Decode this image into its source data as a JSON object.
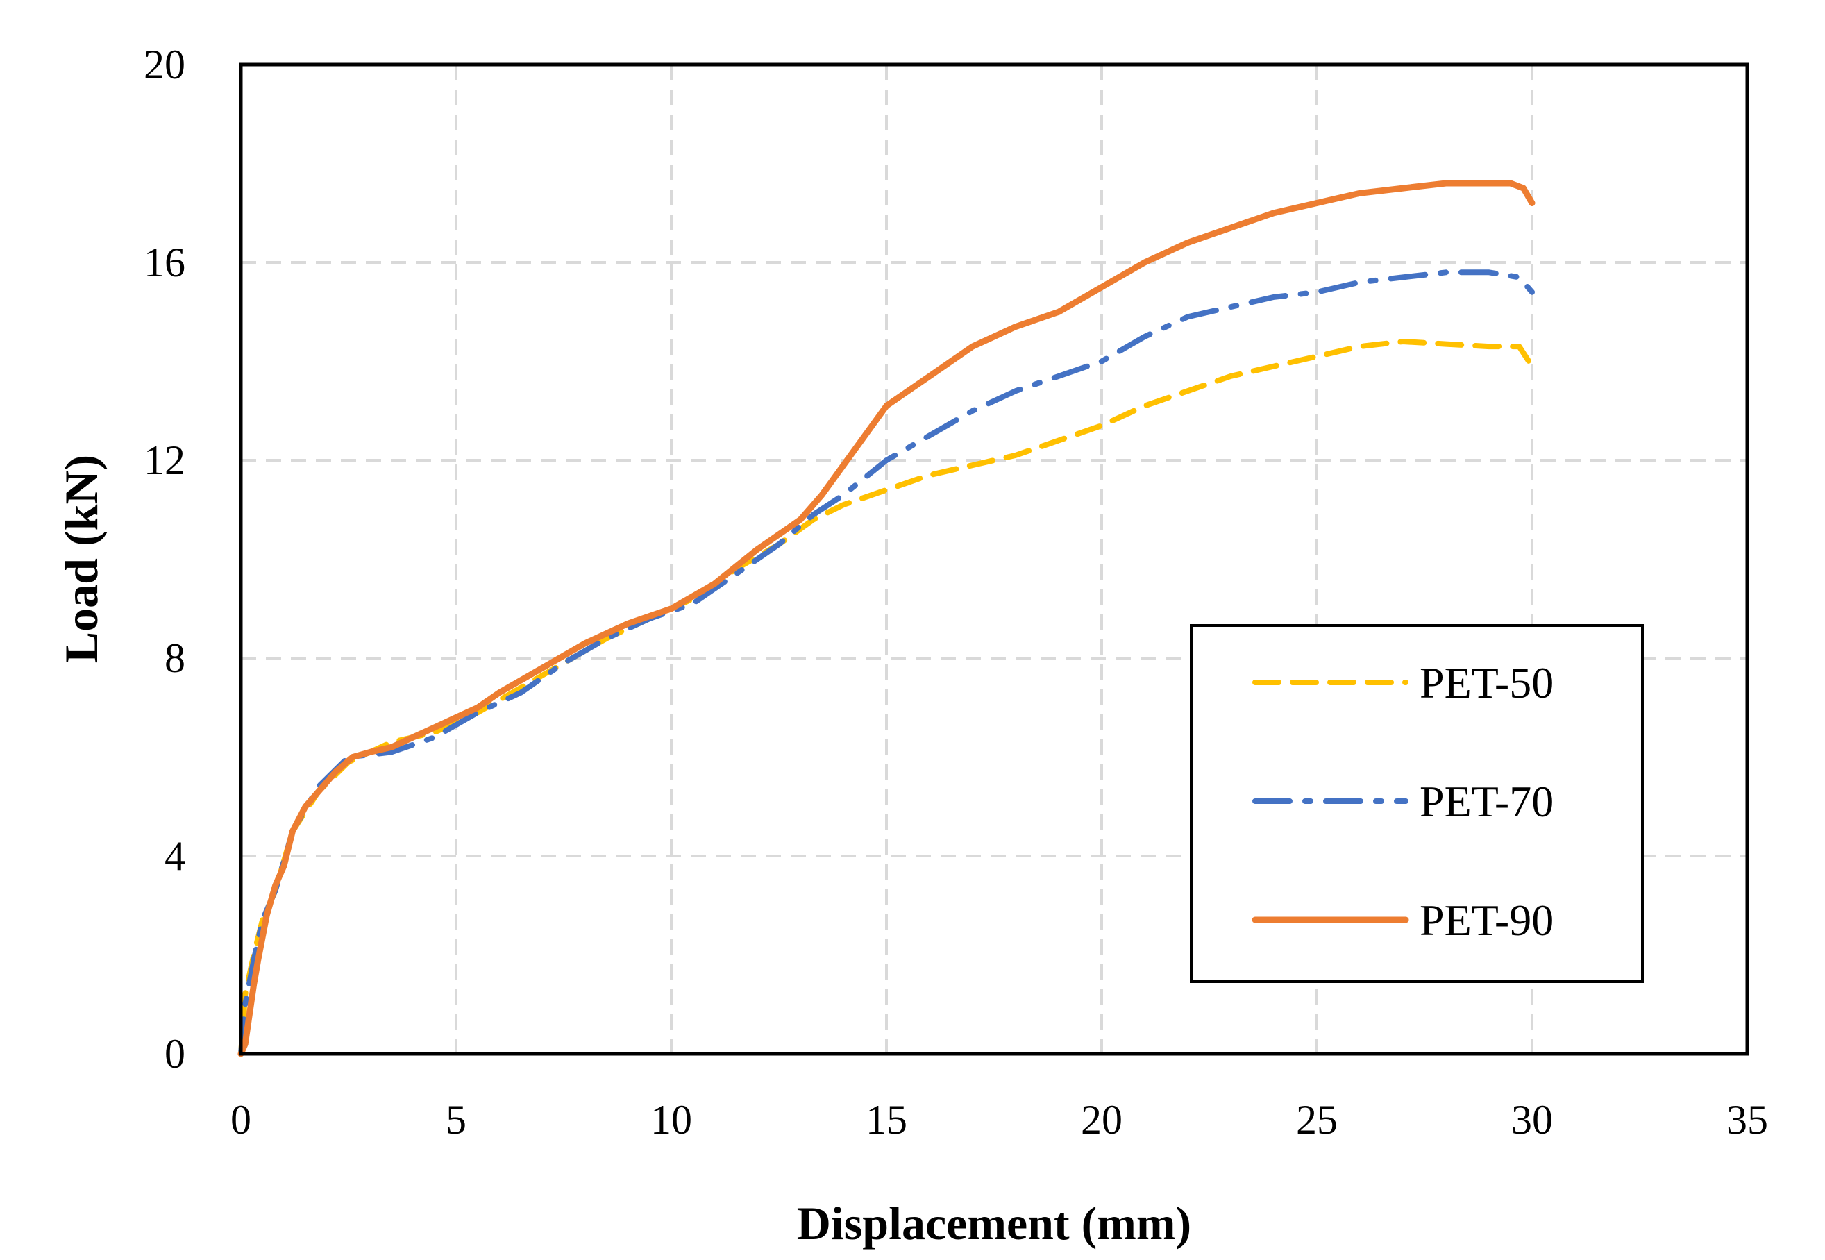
{
  "colors": {
    "background": "#ffffff",
    "grid": "#d9d9d9",
    "frame": "#000000",
    "pet50": "#ffc000",
    "pet70": "#4472c4",
    "pet90": "#ed7d31"
  },
  "chart_data": {
    "type": "line",
    "title": "",
    "xlabel": "Displacement (mm)",
    "ylabel": "Load (kN)",
    "xlim": [
      0,
      35
    ],
    "ylim": [
      0,
      20
    ],
    "xticks": [
      0,
      5,
      10,
      15,
      20,
      25,
      30,
      35
    ],
    "yticks": [
      0,
      4,
      8,
      12,
      16,
      20
    ],
    "grid": true,
    "legend_position": "right",
    "series": [
      {
        "name": "PET-50",
        "style": "dashed",
        "color": "#ffc000",
        "x": [
          0,
          0.1,
          0.3,
          0.5,
          0.8,
          1.2,
          1.8,
          2.5,
          3.5,
          4.5,
          5.5,
          6.5,
          7.5,
          8.5,
          9.5,
          10.5,
          11.5,
          12.5,
          13.3,
          14,
          15,
          16,
          17,
          18,
          19,
          20,
          21,
          22,
          23,
          24,
          25,
          26,
          27,
          28,
          29,
          29.7,
          30
        ],
        "y": [
          0,
          1.2,
          2.0,
          2.7,
          3.3,
          4.5,
          5.3,
          5.9,
          6.3,
          6.5,
          6.9,
          7.4,
          7.9,
          8.4,
          8.8,
          9.2,
          9.8,
          10.3,
          10.8,
          11.1,
          11.4,
          11.7,
          11.9,
          12.1,
          12.4,
          12.7,
          13.1,
          13.4,
          13.7,
          13.9,
          14.1,
          14.3,
          14.4,
          14.35,
          14.3,
          14.3,
          13.9
        ]
      },
      {
        "name": "PET-70",
        "style": "dash-dot",
        "color": "#4472c4",
        "x": [
          0,
          0.1,
          0.3,
          0.5,
          0.8,
          1.2,
          1.8,
          2.5,
          3.5,
          4.5,
          5.5,
          6.5,
          7.5,
          8.5,
          9.5,
          10.5,
          11.5,
          12.5,
          13.3,
          14,
          15,
          16,
          17,
          18,
          19,
          20,
          21,
          22,
          23,
          24,
          25,
          26,
          27,
          28,
          29,
          29.7,
          30
        ],
        "y": [
          0,
          1.0,
          1.9,
          2.7,
          3.3,
          4.5,
          5.4,
          6.0,
          6.1,
          6.4,
          6.9,
          7.3,
          7.9,
          8.4,
          8.8,
          9.1,
          9.7,
          10.3,
          10.9,
          11.3,
          12.0,
          12.5,
          13.0,
          13.4,
          13.7,
          14.0,
          14.5,
          14.9,
          15.1,
          15.3,
          15.4,
          15.6,
          15.7,
          15.8,
          15.8,
          15.7,
          15.4
        ]
      },
      {
        "name": "PET-90",
        "style": "solid",
        "color": "#ed7d31",
        "x": [
          0,
          0.1,
          0.2,
          0.3,
          0.4,
          0.6,
          0.8,
          1.0,
          1.2,
          1.5,
          1.8,
          2.2,
          2.6,
          3.0,
          3.5,
          4.0,
          4.5,
          5.0,
          5.5,
          6.0,
          7.0,
          8.0,
          9.0,
          10.0,
          11.0,
          12.0,
          13.0,
          13.5,
          14.0,
          14.5,
          15.0,
          15.5,
          16.0,
          16.5,
          17.0,
          17.5,
          18.0,
          19.0,
          20.0,
          21.0,
          22.0,
          23.0,
          24.0,
          25.0,
          26.0,
          27.0,
          28.0,
          28.5,
          29.0,
          29.5,
          29.8,
          30.0
        ],
        "y": [
          0,
          0.2,
          0.8,
          1.4,
          1.9,
          2.8,
          3.4,
          3.8,
          4.5,
          5.0,
          5.3,
          5.7,
          6.0,
          6.1,
          6.2,
          6.4,
          6.6,
          6.8,
          7.0,
          7.3,
          7.8,
          8.3,
          8.7,
          9.0,
          9.5,
          10.2,
          10.8,
          11.3,
          11.9,
          12.5,
          13.1,
          13.4,
          13.7,
          14.0,
          14.3,
          14.5,
          14.7,
          15.0,
          15.5,
          16.0,
          16.4,
          16.7,
          17.0,
          17.2,
          17.4,
          17.5,
          17.6,
          17.6,
          17.6,
          17.6,
          17.5,
          17.2
        ]
      }
    ]
  }
}
